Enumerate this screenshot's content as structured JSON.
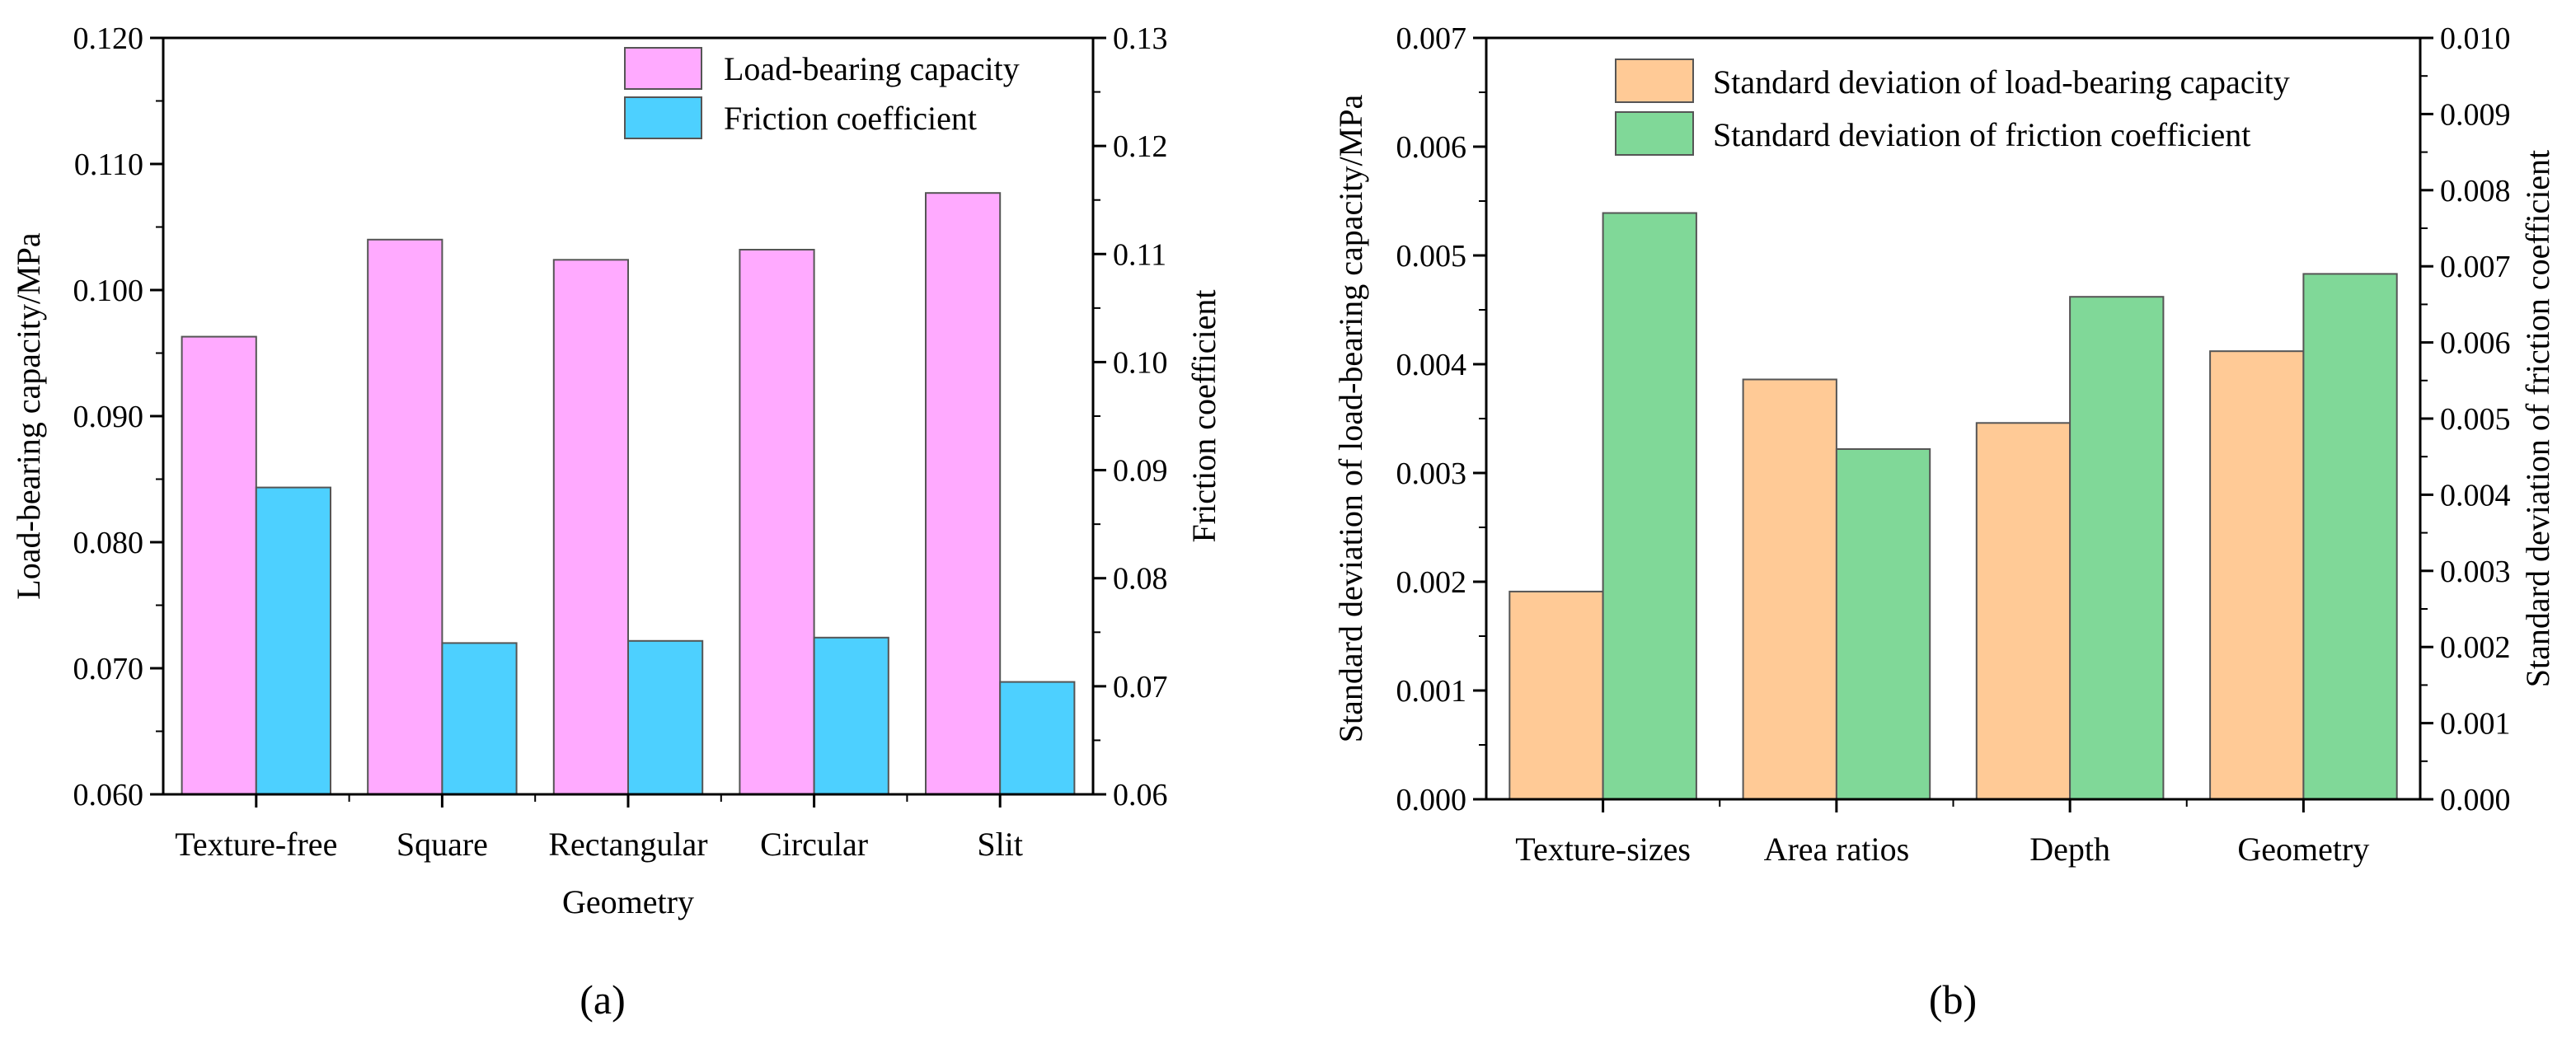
{
  "chart_data": [
    {
      "panel": "a",
      "caption": "(a)",
      "type": "bar",
      "xlabel": "Geometry",
      "ylabel": "Load-bearing capacity/MPa",
      "y2label": "Friction coefficient",
      "categories": [
        "Texture-free",
        "Square",
        "Rectangular",
        "Circular",
        "Slit"
      ],
      "ylim": [
        0.06,
        0.12
      ],
      "y2lim": [
        0.06,
        0.13
      ],
      "yticks": [
        "0.060",
        "0.070",
        "0.080",
        "0.090",
        "0.100",
        "0.110",
        "0.120"
      ],
      "y2ticks": [
        "0.06",
        "0.07",
        "0.08",
        "0.09",
        "0.10",
        "0.11",
        "0.12",
        "0.13"
      ],
      "legend_position": "top-right",
      "series": [
        {
          "name": "Load-bearing capacity",
          "axis": "left",
          "color": "#FFAAFF",
          "values": [
            0.0963,
            0.104,
            0.1024,
            0.1032,
            0.1077
          ]
        },
        {
          "name": "Friction coefficient",
          "axis": "right",
          "color": "#4DD0FF",
          "values": [
            0.0884,
            0.074,
            0.0742,
            0.0745,
            0.0704
          ]
        }
      ]
    },
    {
      "panel": "b",
      "caption": "(b)",
      "type": "bar",
      "xlabel": "",
      "ylabel": "Standard deviation of load-bearing capacity/MPa",
      "y2label": "Standard deviation of friction coefficient",
      "categories": [
        "Texture-sizes",
        "Area ratios",
        "Depth",
        "Geometry"
      ],
      "ylim": [
        0,
        0.007
      ],
      "y2lim": [
        0,
        0.01
      ],
      "yticks": [
        "0.000",
        "0.001",
        "0.002",
        "0.003",
        "0.004",
        "0.005",
        "0.006",
        "0.007"
      ],
      "y2ticks": [
        "0.000",
        "0.001",
        "0.002",
        "0.003",
        "0.004",
        "0.005",
        "0.006",
        "0.007",
        "0.008",
        "0.009",
        "0.010"
      ],
      "legend_position": "top-right",
      "series": [
        {
          "name": "Standard deviation of load-bearing capacity",
          "axis": "left",
          "color": "#FFCA96",
          "values": [
            0.00191,
            0.00386,
            0.00346,
            0.00412
          ]
        },
        {
          "name": "Standard deviation of friction coefficient",
          "axis": "right",
          "color": "#80D898",
          "values": [
            0.0077,
            0.0046,
            0.0066,
            0.0069
          ]
        }
      ]
    }
  ]
}
